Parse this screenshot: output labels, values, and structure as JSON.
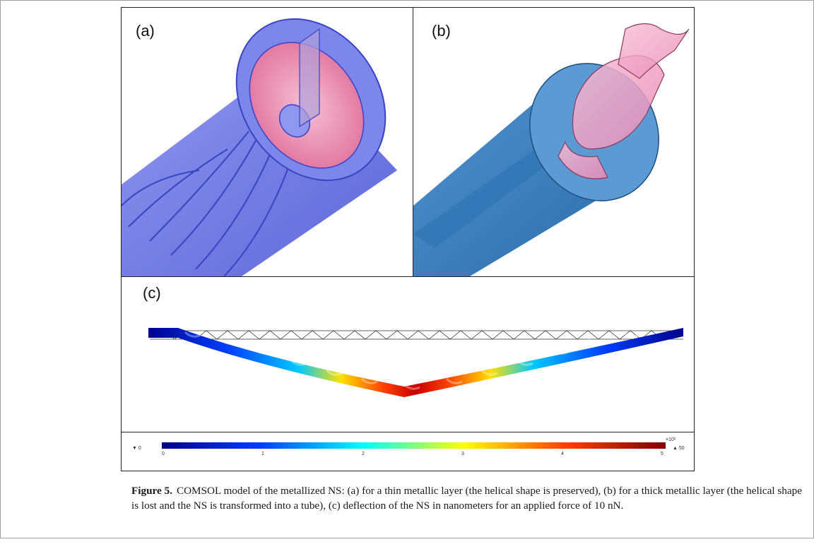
{
  "figure": {
    "panels": {
      "a": {
        "label": "(a)"
      },
      "b": {
        "label": "(b)"
      },
      "c": {
        "label": "(c)"
      }
    },
    "colorbar": {
      "min_marker": "▼ 0",
      "max_marker": "▲ 50",
      "ticks": [
        "0",
        "1",
        "2",
        "3",
        "4",
        "5"
      ],
      "exponent": "×10¹",
      "colors": [
        "#00008f",
        "#0040ff",
        "#00ffff",
        "#ffff00",
        "#ff4000",
        "#800000"
      ]
    }
  },
  "caption": {
    "label": "Figure 5.",
    "text": "COMSOL model of the metallized NS: (a) for a thin metallic layer (the helical shape is preserved), (b) for a thick metallic layer (the helical shape is lost and the NS is transformed into a tube), (c) deflection of the NS in nanometers for an applied force of 10 nN."
  }
}
